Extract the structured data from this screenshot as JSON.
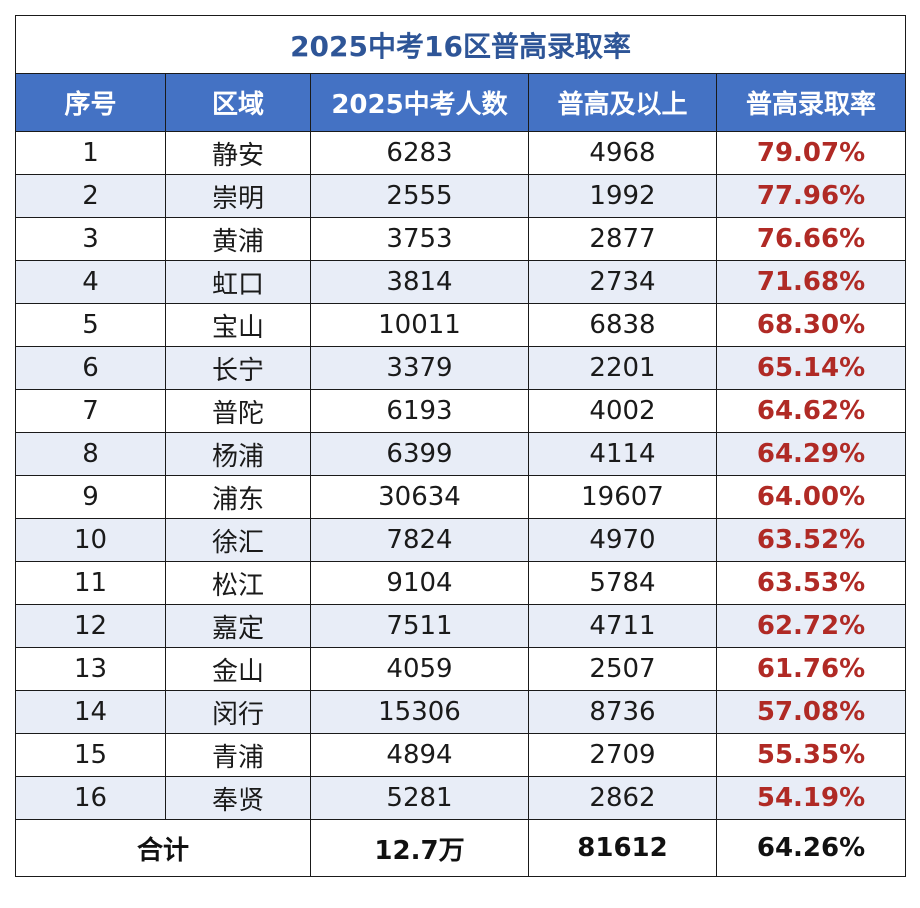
{
  "title": "2025中考16区普高录取率",
  "columns": [
    "序号",
    "区域",
    "2025中考人数",
    "普高及以上",
    "普高录取率"
  ],
  "rows": [
    {
      "no": "1",
      "district": "静安",
      "candidates": "6283",
      "admitted": "4968",
      "rate": "79.07%"
    },
    {
      "no": "2",
      "district": "崇明",
      "candidates": "2555",
      "admitted": "1992",
      "rate": "77.96%"
    },
    {
      "no": "3",
      "district": "黄浦",
      "candidates": "3753",
      "admitted": "2877",
      "rate": "76.66%"
    },
    {
      "no": "4",
      "district": "虹口",
      "candidates": "3814",
      "admitted": "2734",
      "rate": "71.68%"
    },
    {
      "no": "5",
      "district": "宝山",
      "candidates": "10011",
      "admitted": "6838",
      "rate": "68.30%"
    },
    {
      "no": "6",
      "district": "长宁",
      "candidates": "3379",
      "admitted": "2201",
      "rate": "65.14%"
    },
    {
      "no": "7",
      "district": "普陀",
      "candidates": "6193",
      "admitted": "4002",
      "rate": "64.62%"
    },
    {
      "no": "8",
      "district": "杨浦",
      "candidates": "6399",
      "admitted": "4114",
      "rate": "64.29%"
    },
    {
      "no": "9",
      "district": "浦东",
      "candidates": "30634",
      "admitted": "19607",
      "rate": "64.00%"
    },
    {
      "no": "10",
      "district": "徐汇",
      "candidates": "7824",
      "admitted": "4970",
      "rate": "63.52%"
    },
    {
      "no": "11",
      "district": "松江",
      "candidates": "9104",
      "admitted": "5784",
      "rate": "63.53%"
    },
    {
      "no": "12",
      "district": "嘉定",
      "candidates": "7511",
      "admitted": "4711",
      "rate": "62.72%"
    },
    {
      "no": "13",
      "district": "金山",
      "candidates": "4059",
      "admitted": "2507",
      "rate": "61.76%"
    },
    {
      "no": "14",
      "district": "闵行",
      "candidates": "15306",
      "admitted": "8736",
      "rate": "57.08%"
    },
    {
      "no": "15",
      "district": "青浦",
      "candidates": "4894",
      "admitted": "2709",
      "rate": "55.35%"
    },
    {
      "no": "16",
      "district": "奉贤",
      "candidates": "5281",
      "admitted": "2862",
      "rate": "54.19%"
    }
  ],
  "total": {
    "label": "合计",
    "candidates": "12.7万",
    "admitted": "81612",
    "rate": "64.26%"
  },
  "colors": {
    "title": "#2e5597",
    "header_bg": "#4472c4",
    "header_text": "#ffffff",
    "stripe": "#e8edf7",
    "rate": "#b02a25",
    "border": "#1a1a1a"
  }
}
